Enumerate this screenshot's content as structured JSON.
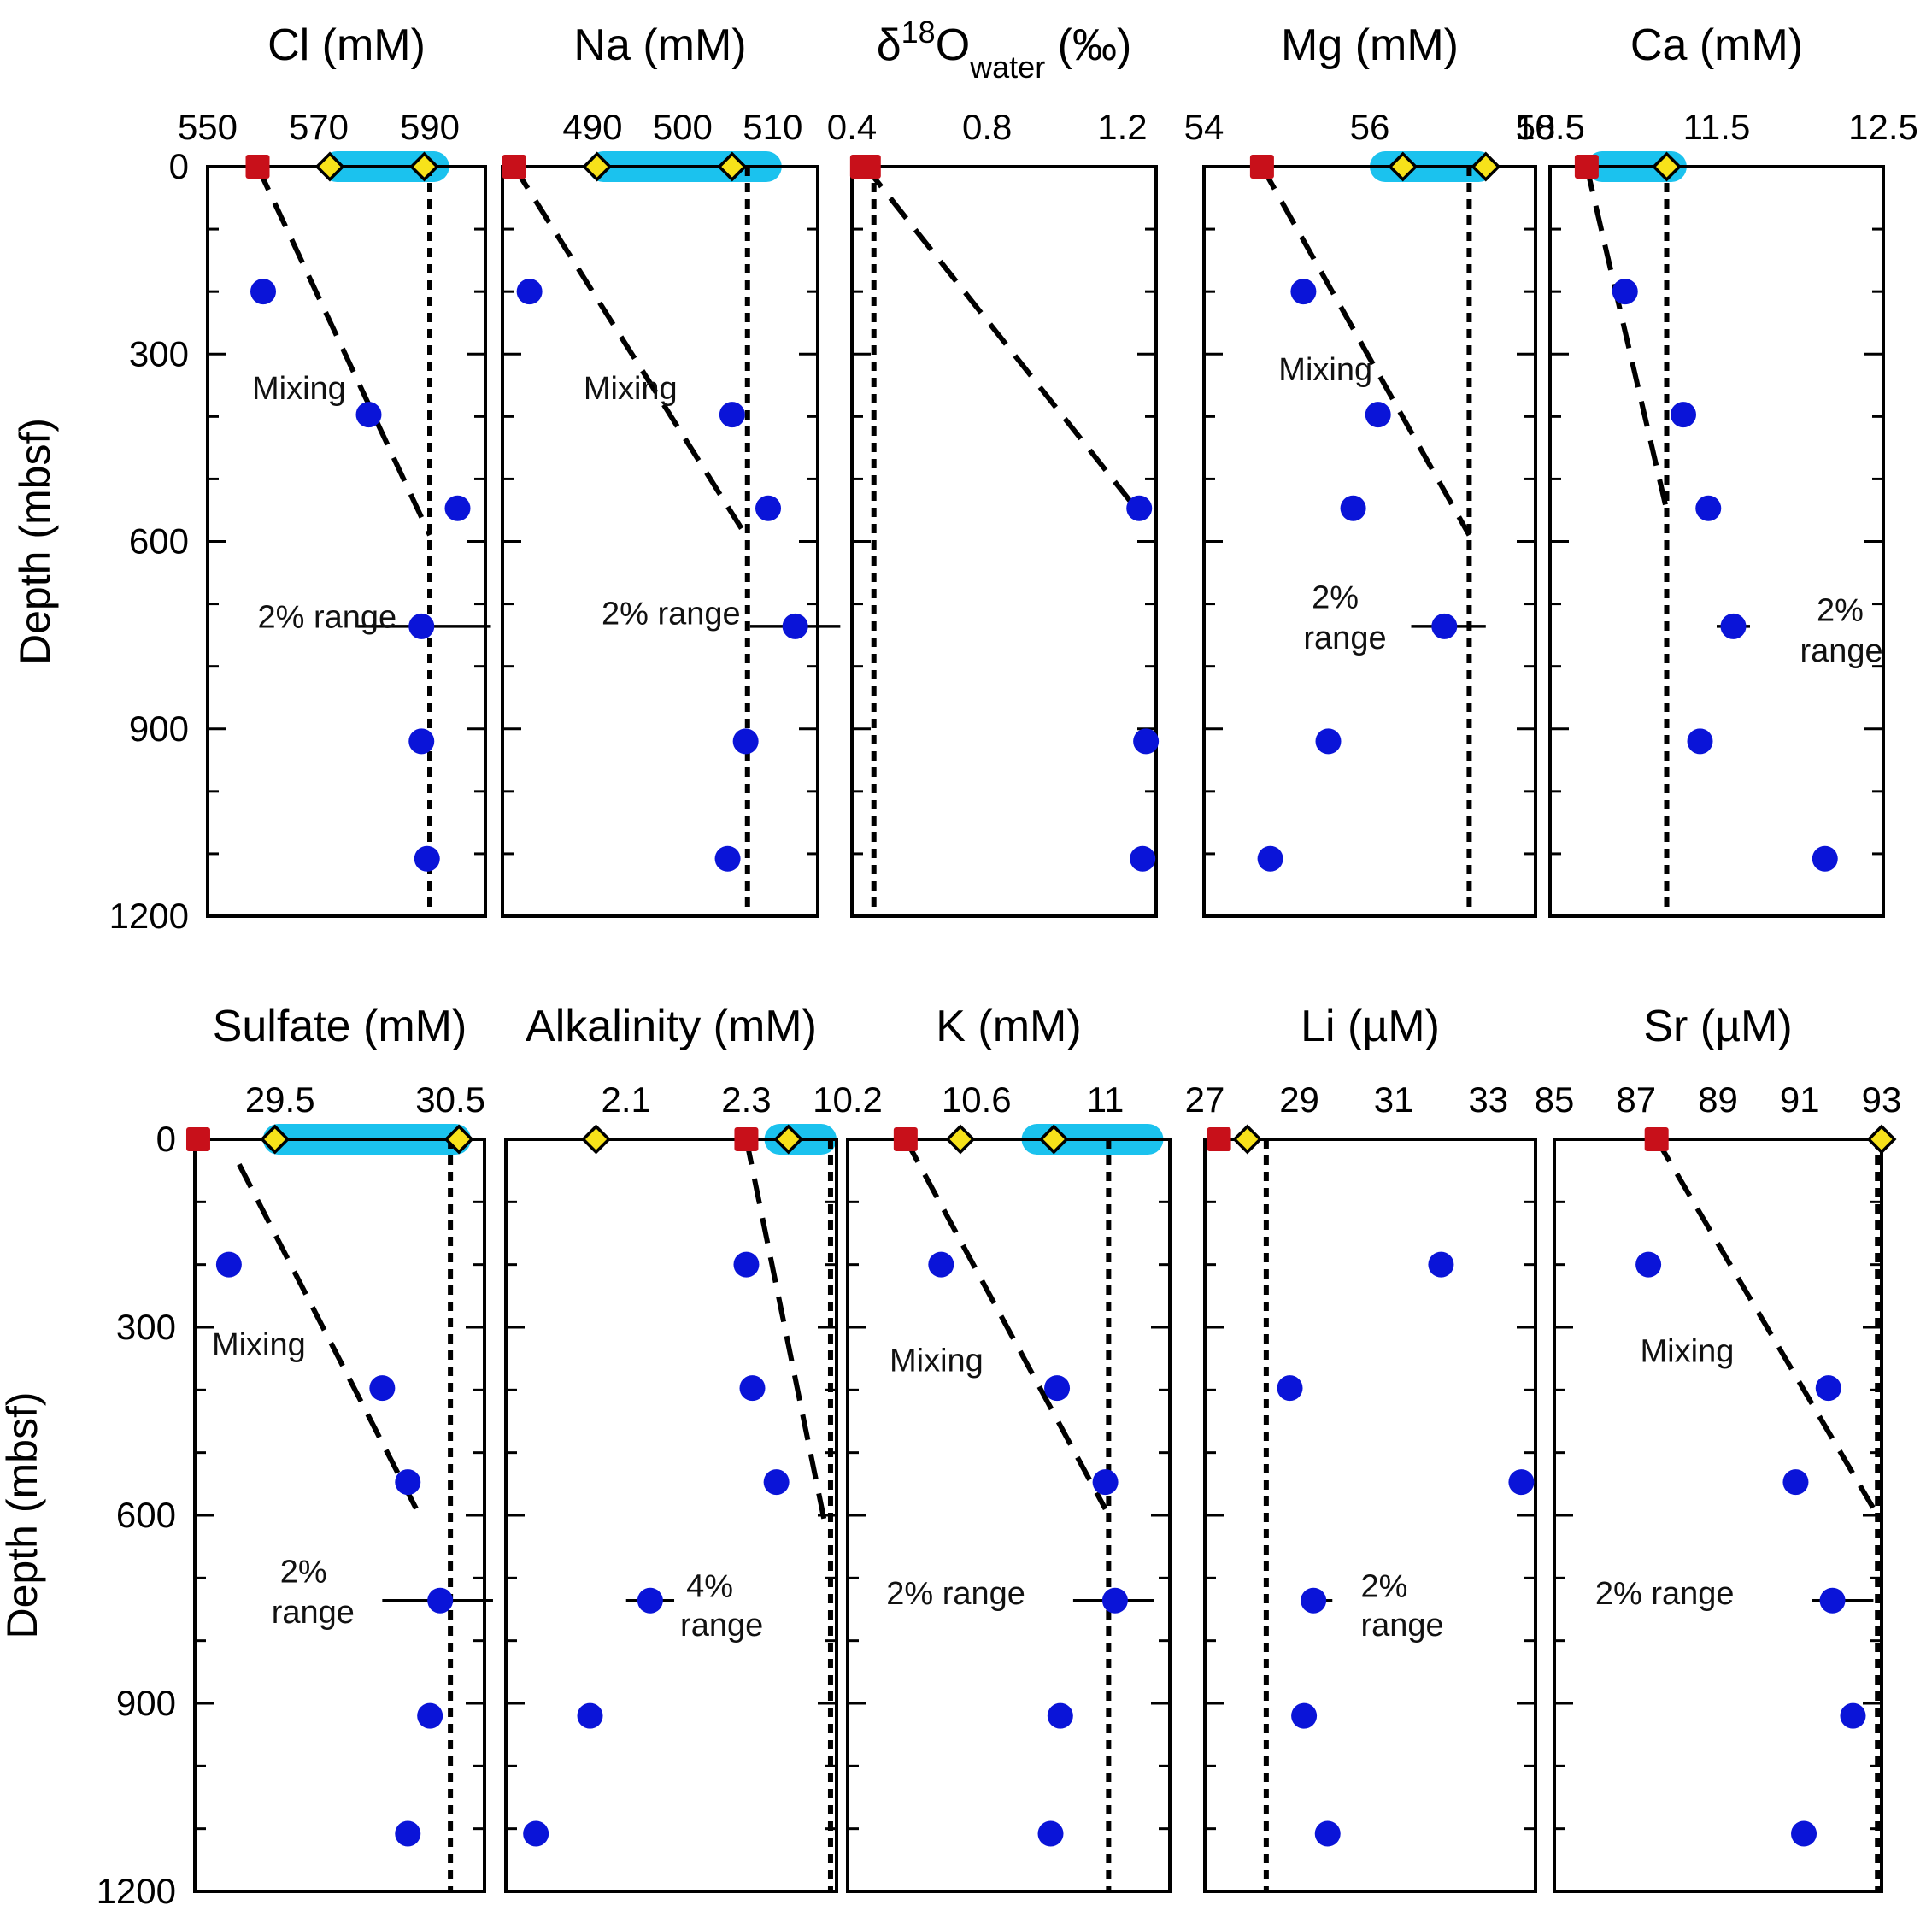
{
  "colors": {
    "measured": "#0a14d8",
    "square": "#c8101a",
    "diamond": "#f7e21a",
    "band": "#1bc2ee",
    "axis": "#000000"
  },
  "legend": {
    "measured": "blue-circle",
    "square": "red-square",
    "diamond": "yellow-diamond"
  },
  "chart_data": [
    {
      "type": "scatter",
      "title": "Cl (mM)",
      "xlim": [
        550,
        600
      ],
      "ylim": [
        1200,
        0
      ],
      "xticks": [
        550,
        570,
        590
      ],
      "ylabel": "Depth (mbsf)",
      "yticks": [
        0,
        300,
        600,
        900,
        1200
      ],
      "points": [
        [
          560,
          200
        ],
        [
          579,
          397
        ],
        [
          595,
          547
        ],
        [
          588.5,
          736
        ],
        [
          588.5,
          920
        ],
        [
          589.5,
          1108
        ]
      ],
      "square": [
        559,
        0
      ],
      "diamonds": [
        [
          572,
          0
        ],
        [
          589,
          0
        ]
      ],
      "band": [
        570.5,
        593.5
      ],
      "mixing": [
        [
          559,
          0
        ],
        [
          590,
          590
        ]
      ],
      "vline": 590,
      "errorbar": {
        "x": 588.5,
        "y": 736,
        "xerr": [
          577,
          601
        ]
      },
      "annotations": [
        {
          "text": "Mixing",
          "x": 558,
          "y": 372
        },
        {
          "text": "2% range",
          "x": 559,
          "y": 738
        }
      ]
    },
    {
      "type": "scatter",
      "title": "Na (mM)",
      "xlim": [
        480,
        515
      ],
      "ylim": [
        1200,
        0
      ],
      "xticks": [
        490,
        500,
        510
      ],
      "yticks": [
        0,
        300,
        600,
        900,
        1200
      ],
      "points": [
        [
          483,
          200
        ],
        [
          505.5,
          397
        ],
        [
          509.5,
          547
        ],
        [
          512.5,
          736
        ],
        [
          507,
          920
        ],
        [
          505,
          1108
        ]
      ],
      "square": [
        481.3,
        0
      ],
      "diamonds": [
        [
          490.5,
          0
        ],
        [
          505.5,
          0
        ]
      ],
      "band": [
        489.5,
        511
      ],
      "mixing": [
        [
          481.3,
          0
        ],
        [
          507,
          590
        ]
      ],
      "vline": 507.2,
      "errorbar": {
        "x": 512.5,
        "y": 736,
        "xerr": [
          507.5,
          517.5
        ]
      },
      "annotations": [
        {
          "text": "Mixing",
          "x": 489,
          "y": 372
        },
        {
          "text": "2% range",
          "x": 491,
          "y": 733
        }
      ]
    },
    {
      "type": "scatter",
      "title": "δ18Owater (‰)",
      "xlim": [
        0.4,
        1.3
      ],
      "ylim": [
        1200,
        0
      ],
      "xticks": [
        0.4,
        0.8,
        1.2
      ],
      "yticks": [
        0,
        300,
        600,
        900,
        1200
      ],
      "points": [
        [
          1.25,
          547
        ],
        [
          1.27,
          920
        ],
        [
          1.26,
          1108
        ]
      ],
      "squares": [
        [
          0.43,
          0
        ],
        [
          0.45,
          0
        ]
      ],
      "diamonds": [],
      "mixing": [
        [
          0.44,
          0
        ],
        [
          1.24,
          547
        ]
      ],
      "vline": 0.465,
      "annotations": []
    },
    {
      "type": "scatter",
      "title": "Mg (mM)",
      "xlim": [
        54,
        58
      ],
      "ylim": [
        1200,
        0
      ],
      "xticks": [
        54,
        56,
        58
      ],
      "yticks": [
        0,
        300,
        600,
        900,
        1200
      ],
      "points": [
        [
          55.2,
          200
        ],
        [
          56.1,
          397
        ],
        [
          55.8,
          547
        ],
        [
          56.9,
          736
        ],
        [
          55.5,
          920
        ],
        [
          54.8,
          1108
        ]
      ],
      "square": [
        54.7,
        0
      ],
      "diamonds": [
        [
          56.4,
          0
        ],
        [
          57.4,
          0
        ]
      ],
      "band": [
        56.0,
        57.5
      ],
      "mixing": [
        [
          54.7,
          0
        ],
        [
          57.2,
          590
        ]
      ],
      "vline": 57.2,
      "errorbar": {
        "x": 56.9,
        "y": 736,
        "xerr": [
          56.5,
          57.4
        ]
      },
      "annotations": [
        {
          "text": "Mixing",
          "x": 54.9,
          "y": 342
        },
        {
          "text": "2%",
          "x": 55.3,
          "y": 707
        },
        {
          "text": "range",
          "x": 55.2,
          "y": 772
        }
      ]
    },
    {
      "type": "scatter",
      "title": "Ca (mM)",
      "xlim": [
        10.5,
        12.5
      ],
      "ylim": [
        1200,
        0
      ],
      "xticks": [
        10.5,
        11.5,
        12.5
      ],
      "yticks": [
        0,
        300,
        600,
        900,
        1200
      ],
      "points": [
        [
          10.95,
          200
        ],
        [
          11.3,
          397
        ],
        [
          11.45,
          547
        ],
        [
          11.6,
          736
        ],
        [
          11.4,
          920
        ],
        [
          12.15,
          1108
        ]
      ],
      "square": [
        10.72,
        0
      ],
      "diamonds": [
        [
          11.2,
          0
        ]
      ],
      "band": [
        10.72,
        11.32
      ],
      "mixing": [
        [
          10.72,
          0
        ],
        [
          11.2,
          550
        ]
      ],
      "vline": 11.2,
      "errorbar": {
        "x": 11.6,
        "y": 736,
        "xerr": [
          11.5,
          11.7
        ]
      },
      "annotations": [
        {
          "text": "2%",
          "x": 12.1,
          "y": 727
        },
        {
          "text": "range",
          "x": 12.0,
          "y": 792
        }
      ]
    },
    {
      "type": "scatter",
      "title": "Sulfate (mM)",
      "xlim": [
        29.0,
        30.7
      ],
      "ylim": [
        1200,
        0
      ],
      "xticks": [
        29.5,
        30.5
      ],
      "ylabel": "Depth (mbsf)",
      "yticks": [
        0,
        300,
        600,
        900,
        1200
      ],
      "points": [
        [
          29.2,
          200
        ],
        [
          30.1,
          397
        ],
        [
          30.25,
          547
        ],
        [
          30.44,
          736
        ],
        [
          30.38,
          920
        ],
        [
          30.25,
          1108
        ]
      ],
      "square": [
        29.02,
        0
      ],
      "diamonds": [
        [
          29.47,
          0
        ],
        [
          30.55,
          0
        ]
      ],
      "band": [
        29.4,
        30.62
      ],
      "mixing": [
        [
          29.26,
          40
        ],
        [
          30.3,
          590
        ]
      ],
      "vline": 30.5,
      "errorbar": {
        "x": 30.44,
        "y": 736,
        "xerr": [
          30.1,
          30.75
        ]
      },
      "annotations": [
        {
          "text": "Mixing",
          "x": 29.1,
          "y": 345
        },
        {
          "text": "2%",
          "x": 29.5,
          "y": 707
        },
        {
          "text": "range",
          "x": 29.45,
          "y": 772
        }
      ]
    },
    {
      "type": "scatter",
      "title": "Alkalinity (mM)",
      "xlim": [
        1.9,
        2.45
      ],
      "ylim": [
        1200,
        0
      ],
      "xticks": [
        2.1,
        2.3
      ],
      "yticks": [
        0,
        300,
        600,
        900,
        1200
      ],
      "points": [
        [
          2.3,
          200
        ],
        [
          2.31,
          397
        ],
        [
          2.35,
          547
        ],
        [
          2.14,
          736
        ],
        [
          2.04,
          920
        ],
        [
          1.95,
          1108
        ]
      ],
      "square": [
        2.3,
        0
      ],
      "diamonds": [
        [
          2.05,
          0
        ],
        [
          2.37,
          0
        ]
      ],
      "band": [
        2.33,
        2.45
      ],
      "mixing": [
        [
          2.3,
          0
        ],
        [
          2.43,
          610
        ]
      ],
      "vline": 2.44,
      "errorbar": {
        "x": 2.14,
        "y": 736,
        "xerr": [
          2.1,
          2.18
        ]
      },
      "annotations": [
        {
          "text": "4%",
          "x": 2.2,
          "y": 730
        },
        {
          "text": "range",
          "x": 2.19,
          "y": 792
        }
      ]
    },
    {
      "type": "scatter",
      "title": "K (mM)",
      "xlim": [
        10.2,
        11.2
      ],
      "ylim": [
        1200,
        0
      ],
      "xticks": [
        10.2,
        10.6,
        11
      ],
      "yticks": [
        0,
        300,
        600,
        900,
        1200
      ],
      "points": [
        [
          10.49,
          200
        ],
        [
          10.85,
          397
        ],
        [
          11.0,
          547
        ],
        [
          11.03,
          736
        ],
        [
          10.86,
          920
        ],
        [
          10.83,
          1108
        ]
      ],
      "square": [
        10.38,
        0
      ],
      "diamonds": [
        [
          10.55,
          0
        ],
        [
          10.84,
          0
        ]
      ],
      "band": [
        10.74,
        11.18
      ],
      "mixing": [
        [
          10.38,
          0
        ],
        [
          11.0,
          590
        ]
      ],
      "vline": 11.01,
      "errorbar": {
        "x": 11.03,
        "y": 736,
        "xerr": [
          10.9,
          11.15
        ]
      },
      "annotations": [
        {
          "text": "Mixing",
          "x": 10.33,
          "y": 370
        },
        {
          "text": "2% range",
          "x": 10.32,
          "y": 742
        }
      ]
    },
    {
      "type": "scatter",
      "title": "Li (µM)",
      "xlim": [
        27,
        34
      ],
      "ylim": [
        1200,
        0
      ],
      "xticks": [
        27,
        29,
        31,
        33
      ],
      "yticks": [
        0,
        300,
        600,
        900,
        1200
      ],
      "points": [
        [
          32,
          200
        ],
        [
          28.8,
          397
        ],
        [
          33.7,
          547
        ],
        [
          29.3,
          736
        ],
        [
          29.1,
          920
        ],
        [
          29.6,
          1108
        ]
      ],
      "square": [
        27.3,
        0
      ],
      "diamonds": [
        [
          27.9,
          0
        ]
      ],
      "vline": 28.3,
      "errorbar": {
        "x": 29.3,
        "y": 736,
        "xerr": [
          29.1,
          29.7
        ]
      },
      "annotations": [
        {
          "text": "2%",
          "x": 30.3,
          "y": 730
        },
        {
          "text": "range",
          "x": 30.3,
          "y": 792
        }
      ]
    },
    {
      "type": "scatter",
      "title": "Sr (µM)",
      "xlim": [
        85,
        93
      ],
      "ylim": [
        1200,
        0
      ],
      "xticks": [
        85,
        87,
        89,
        91,
        93
      ],
      "yticks": [
        0,
        300,
        600,
        900,
        1200
      ],
      "points": [
        [
          87.3,
          200
        ],
        [
          91.7,
          397
        ],
        [
          90.9,
          547
        ],
        [
          91.8,
          736
        ],
        [
          92.3,
          920
        ],
        [
          91.1,
          1108
        ]
      ],
      "square": [
        87.5,
        0
      ],
      "diamonds": [
        [
          93,
          0
        ]
      ],
      "mixing": [
        [
          87.5,
          0
        ],
        [
          92.9,
          600
        ]
      ],
      "vline": 92.9,
      "errorbar": {
        "x": 91.8,
        "y": 736,
        "xerr": [
          91.3,
          92.8
        ]
      },
      "annotations": [
        {
          "text": "Mixing",
          "x": 87.1,
          "y": 355
        },
        {
          "text": "2% range",
          "x": 86.0,
          "y": 742
        }
      ]
    }
  ]
}
